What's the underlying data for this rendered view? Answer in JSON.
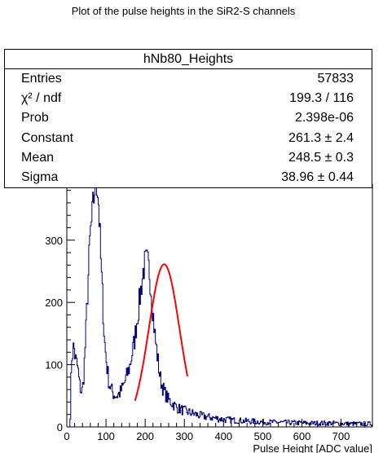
{
  "header": {
    "title": "Plot of the pulse heights in the SiR2-S channels"
  },
  "stats": {
    "name": "hNb80_Heights",
    "rows": [
      {
        "label": "Entries",
        "value": "57833"
      },
      {
        "label": "χ² / ndf",
        "value": "199.3 / 116"
      },
      {
        "label": "Prob",
        "value": "2.398e-06"
      },
      {
        "label": "Constant",
        "value": "261.3 ± 2.4"
      },
      {
        "label": "Mean",
        "value": "248.5 ± 0.3"
      },
      {
        "label": "Sigma",
        "value": "38.96 ± 0.44"
      }
    ]
  },
  "colors": {
    "histogram": "#00007f",
    "fit": "#ff0000",
    "axis": "#000000"
  },
  "chart_data": {
    "type": "histogram",
    "title": "Plot of the pulse heights in the SiR2-S channels",
    "xlabel": "Pulse Height [ADC value]",
    "ylabel": "",
    "xlim": [
      0,
      780
    ],
    "ylim": [
      0,
      390
    ],
    "x_ticks": [
      0,
      100,
      200,
      300,
      400,
      500,
      600,
      700
    ],
    "y_ticks": [
      0,
      100,
      200,
      300
    ],
    "histogram": {
      "name": "hNb80_Heights",
      "bin_width": 2,
      "profile": [
        [
          0,
          0
        ],
        [
          8,
          0
        ],
        [
          10,
          40
        ],
        [
          12,
          110
        ],
        [
          18,
          130
        ],
        [
          22,
          110
        ],
        [
          28,
          95
        ],
        [
          32,
          70
        ],
        [
          38,
          55
        ],
        [
          42,
          70
        ],
        [
          48,
          140
        ],
        [
          54,
          230
        ],
        [
          60,
          310
        ],
        [
          64,
          330
        ],
        [
          68,
          360
        ],
        [
          72,
          390
        ],
        [
          76,
          400
        ],
        [
          80,
          375
        ],
        [
          84,
          320
        ],
        [
          88,
          250
        ],
        [
          92,
          200
        ],
        [
          96,
          140
        ],
        [
          102,
          100
        ],
        [
          108,
          70
        ],
        [
          114,
          60
        ],
        [
          120,
          52
        ],
        [
          128,
          50
        ],
        [
          136,
          55
        ],
        [
          144,
          65
        ],
        [
          152,
          80
        ],
        [
          160,
          95
        ],
        [
          166,
          115
        ],
        [
          172,
          135
        ],
        [
          178,
          165
        ],
        [
          184,
          195
        ],
        [
          190,
          225
        ],
        [
          196,
          255
        ],
        [
          200,
          262
        ],
        [
          204,
          265
        ],
        [
          208,
          258
        ],
        [
          212,
          245
        ],
        [
          216,
          215
        ],
        [
          220,
          185
        ],
        [
          226,
          140
        ],
        [
          232,
          110
        ],
        [
          238,
          80
        ],
        [
          244,
          65
        ],
        [
          250,
          55
        ],
        [
          258,
          45
        ],
        [
          266,
          40
        ],
        [
          274,
          35
        ],
        [
          284,
          30
        ],
        [
          296,
          27
        ],
        [
          308,
          24
        ],
        [
          320,
          22
        ],
        [
          335,
          19
        ],
        [
          350,
          17
        ],
        [
          370,
          15
        ],
        [
          400,
          12
        ],
        [
          440,
          10
        ],
        [
          500,
          8
        ],
        [
          560,
          7
        ],
        [
          620,
          6
        ],
        [
          680,
          6
        ],
        [
          720,
          5
        ],
        [
          760,
          5
        ],
        [
          778,
          5
        ]
      ]
    },
    "fit": {
      "function": "gaus",
      "constant": 261.3,
      "mean": 248.5,
      "sigma": 38.96,
      "range": [
        174,
        308
      ]
    },
    "stats_box": {
      "name": "hNb80_Heights",
      "entries": 57833,
      "chi2_ndf": "199.3 / 116",
      "prob": "2.398e-06",
      "constant": "261.3 ± 2.4",
      "mean": "248.5 ± 0.3",
      "sigma": "38.96 ± 0.44"
    },
    "grid": false,
    "legend": "top-right"
  }
}
